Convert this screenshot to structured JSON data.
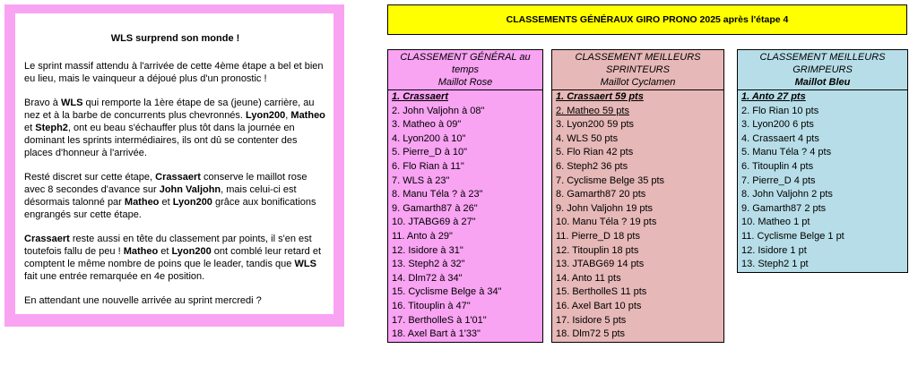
{
  "article": {
    "title": "WLS surprend son monde !",
    "paragraphs": [
      [
        {
          "text": "Le sprint massif attendu à l'arrivée de cette 4ème étape a bel et bien eu lieu, mais le vainqueur a déjoué plus d'un pronostic !"
        }
      ],
      [
        {
          "text": "Bravo à "
        },
        {
          "text": "WLS",
          "bold": true
        },
        {
          "text": " qui remporte la 1ère étape de sa (jeune) carrière, au nez et à la barbe de concurrents plus chevronnés. "
        },
        {
          "text": "Lyon200",
          "bold": true
        },
        {
          "text": ", "
        },
        {
          "text": "Matheo",
          "bold": true
        },
        {
          "text": " et "
        },
        {
          "text": "Steph2",
          "bold": true
        },
        {
          "text": ", ont eu beau s'échauffer plus tôt dans la journée en dominant les sprints intermédiaires,  ils ont dû se contenter des places d'honneur à l'arrivée."
        }
      ],
      [
        {
          "text": "Resté discret sur cette étape, "
        },
        {
          "text": "Crassaert",
          "bold": true
        },
        {
          "text": " conserve le maillot rose  avec 8 secondes d'avance sur "
        },
        {
          "text": "John Valjohn",
          "bold": true
        },
        {
          "text": ", mais celui-ci est désormais talonné par "
        },
        {
          "text": "Matheo",
          "bold": true
        },
        {
          "text": " et "
        },
        {
          "text": "Lyon200",
          "bold": true
        },
        {
          "text": "  grâce aux bonifications engrangés sur cette étape."
        }
      ],
      [
        {
          "text": "Crassaert",
          "bold": true
        },
        {
          "text": " reste aussi en tête du classement par points, il s'en est toutefois fallu de peu ! "
        },
        {
          "text": "Matheo",
          "bold": true
        },
        {
          "text": " et "
        },
        {
          "text": "Lyon200",
          "bold": true
        },
        {
          "text": "  ont comblé leur retard et comptent le même nombre de poins que le leader, tandis que "
        },
        {
          "text": "WLS",
          "bold": true
        },
        {
          "text": " fait une entrée remarquée en 4e position."
        }
      ],
      [
        {
          "text": "En attendant une nouvelle arrivée au sprint mercredi ?"
        }
      ]
    ]
  },
  "banner": "CLASSEMENTS GÉNÉRAUX GIRO PRONO 2025 après l'étape 4",
  "tables": [
    {
      "title": "CLASSEMENT GÉNÉRAL au temps",
      "subtitle": "Maillot Rose",
      "color": "#f9a3f3",
      "rows": [
        "1. Crassaert",
        "2. John Valjohn à 08\"",
        "3. Matheo à 09\"",
        "4. Lyon200 à 10\"",
        "5. Pierre_D à 10\"",
        "6. Flo Rian à 11\"",
        "7. WLS à 23\"",
        "8. Manu Téla ? à 23\"",
        "9. Gamarth87 à 26\"",
        "10. JTABG69 à 27\"",
        "11. Anto à 29\"",
        "12. Isidore à 31\"",
        "13. Steph2 à 32\"",
        "14. Dlm72 à 34\"",
        "15. Cyclisme Belge à 34\"",
        "16. Titouplin à 47\"",
        "17. BertholleS à 1'01\"",
        "18. Axel Bart à 1'33\""
      ]
    },
    {
      "title": "CLASSEMENT MEILLEURS SPRINTEURS",
      "subtitle": "Maillot Cyclamen",
      "color": "#e6b8b7",
      "rows": [
        "1. Crassaert 59 pts",
        "2. Matheo 59 pts",
        "3. Lyon200 59 pts",
        "4. WLS 50 pts",
        "5. Flo Rian 42 pts",
        "6. Steph2 36 pts",
        "7. Cyclisme Belge 35 pts",
        "8. Gamarth87 20 pts",
        "9. John Valjohn 19 pts",
        "10. Manu Téla ? 19 pts",
        "11. Pierre_D 18 pts",
        "12. Titouplin 18 pts",
        "13. JTABG69 14 pts",
        "14. Anto 11 pts",
        "15. BertholleS 11 pts",
        "16. Axel Bart 10 pts",
        "17. Isidore 5 pts",
        "18. Dlm72 5 pts"
      ]
    },
    {
      "title": "CLASSEMENT MEILLEURS GRIMPEURS",
      "subtitle": "Maillot Bleu",
      "color": "#b7dee8",
      "rows": [
        "1. Anto 27 pts",
        "2. Flo Rian 10 pts",
        "3. Lyon200 6 pts",
        "4. Crassaert 4 pts",
        "5. Manu Téla ? 4 pts",
        "6. Titouplin 4 pts",
        "7. Pierre_D 4 pts",
        "8. John Valjohn 2 pts",
        "9. Gamarth87 2 pts",
        "10. Matheo 1 pt",
        "11. Cyclisme Belge 1 pt",
        "12. Isidore 1 pt",
        "13. Steph2 1 pt"
      ]
    }
  ]
}
